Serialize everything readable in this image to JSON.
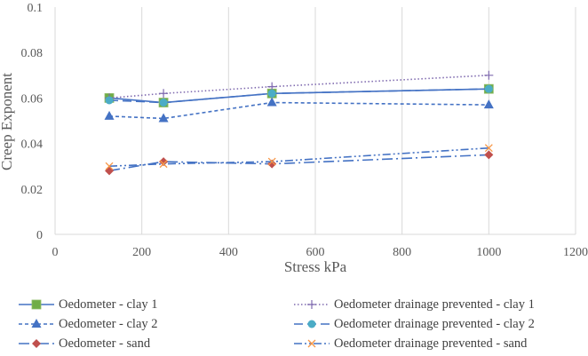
{
  "chart_data": {
    "type": "line",
    "title": "",
    "xlabel": "Stress kPa",
    "ylabel": "Creep Exponent",
    "xlim": [
      0,
      1200
    ],
    "ylim": [
      0,
      0.1
    ],
    "x_ticks": [
      "0",
      "200",
      "400",
      "600",
      "800",
      "1000",
      "1200"
    ],
    "y_ticks": [
      "0",
      "0.02",
      "0.04",
      "0.06",
      "0.08",
      "0.1"
    ],
    "grid": "vertical",
    "legend_position": "bottom",
    "series": [
      {
        "name": "Oedometer - clay 1",
        "color": "#4472C4",
        "marker_color": "#70AD47",
        "marker": "square",
        "line": "solid",
        "x": [
          125,
          250,
          500,
          1000
        ],
        "y": [
          0.06,
          0.058,
          0.062,
          0.064
        ]
      },
      {
        "name": "Oedometer drainage prevented - clay 1",
        "color": "#7F6AAF",
        "marker_color": "#7F6AAF",
        "marker": "plus",
        "line": "dotted",
        "x": [
          125,
          250,
          500,
          1000
        ],
        "y": [
          0.06,
          0.062,
          0.065,
          0.07
        ]
      },
      {
        "name": "Oedometer - clay 2",
        "color": "#4472C4",
        "marker_color": "#4472C4",
        "marker": "triangle",
        "line": "dashed",
        "x": [
          125,
          250,
          500,
          1000
        ],
        "y": [
          0.052,
          0.051,
          0.058,
          0.057
        ]
      },
      {
        "name": "Oedometer drainage prevented - clay 2",
        "color": "#4472C4",
        "marker_color": "#4BACC6",
        "marker": "circle",
        "line": "longdash",
        "x": [
          125,
          250,
          500,
          1000
        ],
        "y": [
          0.059,
          0.058,
          0.062,
          0.064
        ]
      },
      {
        "name": "Oedometer - sand",
        "color": "#4472C4",
        "marker_color": "#C0504D",
        "marker": "diamond",
        "line": "longdash-dot",
        "x": [
          125,
          250,
          500,
          1000
        ],
        "y": [
          0.028,
          0.032,
          0.031,
          0.035
        ]
      },
      {
        "name": "Oedometer drainage prevented - sand",
        "color": "#4472C4",
        "marker_color": "#F79646",
        "marker": "x",
        "line": "dash-dot-dot",
        "x": [
          125,
          250,
          500,
          1000
        ],
        "y": [
          0.03,
          0.031,
          0.032,
          0.038
        ]
      }
    ]
  }
}
